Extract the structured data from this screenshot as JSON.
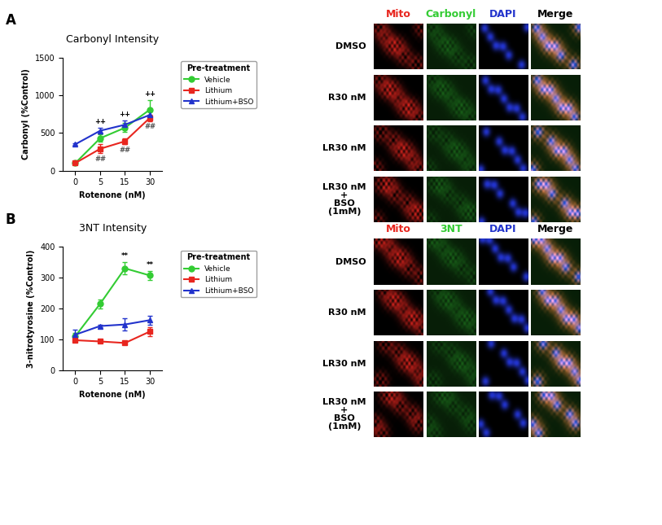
{
  "panel_labels": [
    "A",
    "B"
  ],
  "chart_data": [
    {
      "type": "line",
      "title": "Carbonyl Intensity",
      "x_label": "Rotenone (nM)",
      "y_label": "Carbonyl (%Control)",
      "categories": [
        "0",
        "5",
        "15",
        "30"
      ],
      "ylim": [
        0,
        1500
      ],
      "yticks": [
        0,
        500,
        1000,
        1500
      ],
      "legend": "upper left",
      "legend_title": "Pre-treatment",
      "series": [
        {
          "name": "Vehicle",
          "color": "#33cc33",
          "marker": "circle",
          "values": [
            100,
            430,
            570,
            810
          ],
          "errors": [
            20,
            50,
            60,
            130
          ]
        },
        {
          "name": "Lithium",
          "color": "#e8261f",
          "marker": "square",
          "values": [
            100,
            290,
            390,
            700
          ],
          "errors": [
            10,
            60,
            40,
            40
          ]
        },
        {
          "name": "Lithium+BSO",
          "color": "#2233cc",
          "marker": "triangle",
          "values": [
            350,
            530,
            610,
            740
          ],
          "errors": [
            10,
            40,
            60,
            60
          ]
        }
      ],
      "annotations": [
        {
          "text": "++",
          "category": "5",
          "series": "Lithium+BSO",
          "position": "above"
        },
        {
          "text": "++",
          "category": "15",
          "series": "Lithium+BSO",
          "position": "above"
        },
        {
          "text": "++",
          "category": "30",
          "series": "Vehicle",
          "position": "above"
        },
        {
          "text": "##",
          "category": "5",
          "series": "Lithium",
          "position": "below"
        },
        {
          "text": "##",
          "category": "15",
          "series": "Lithium",
          "position": "below"
        },
        {
          "text": "##",
          "category": "30",
          "series": "Lithium",
          "position": "below"
        }
      ]
    },
    {
      "type": "line",
      "title": "3NT Intensity",
      "x_label": "Rotenone (nM)",
      "y_label": "3-nitrotyrosine (%Control)",
      "categories": [
        "0",
        "5",
        "15",
        "30"
      ],
      "ylim": [
        0,
        400
      ],
      "yticks": [
        0,
        100,
        200,
        300,
        400
      ],
      "legend": "upper left",
      "legend_title": "Pre-treatment",
      "series": [
        {
          "name": "Vehicle",
          "color": "#33cc33",
          "marker": "circle",
          "values": [
            110,
            215,
            330,
            307
          ],
          "errors": [
            10,
            15,
            20,
            15
          ]
        },
        {
          "name": "Lithium",
          "color": "#e8261f",
          "marker": "square",
          "values": [
            97,
            93,
            88,
            125
          ],
          "errors": [
            5,
            5,
            5,
            15
          ]
        },
        {
          "name": "Lithium+BSO",
          "color": "#2233cc",
          "marker": "triangle",
          "values": [
            115,
            143,
            148,
            162
          ],
          "errors": [
            15,
            5,
            20,
            15
          ]
        }
      ],
      "annotations": [
        {
          "text": "**",
          "category": "15",
          "series": "Vehicle",
          "position": "above"
        },
        {
          "text": "**",
          "category": "30",
          "series": "Vehicle",
          "position": "above"
        }
      ]
    }
  ],
  "image_grids": [
    {
      "columns": [
        {
          "text": "Mito",
          "color": "#e8261f"
        },
        {
          "text": "Carbonyl",
          "color": "#33cc33"
        },
        {
          "text": "DAPI",
          "color": "#2233cc"
        },
        {
          "text": "Merge",
          "color": "#000000"
        }
      ],
      "rows": [
        "DMSO",
        "R30 nM",
        "LR30 nM",
        "LR30 nM\n+\nBSO\n(1mM)"
      ]
    },
    {
      "columns": [
        {
          "text": "Mito",
          "color": "#e8261f"
        },
        {
          "text": "3NT",
          "color": "#33cc33"
        },
        {
          "text": "DAPI",
          "color": "#2233cc"
        },
        {
          "text": "Merge",
          "color": "#000000"
        }
      ],
      "rows": [
        "DMSO",
        "R30 nM",
        "LR30 nM",
        "LR30 nM\n+\nBSO\n(1mM)"
      ]
    }
  ]
}
